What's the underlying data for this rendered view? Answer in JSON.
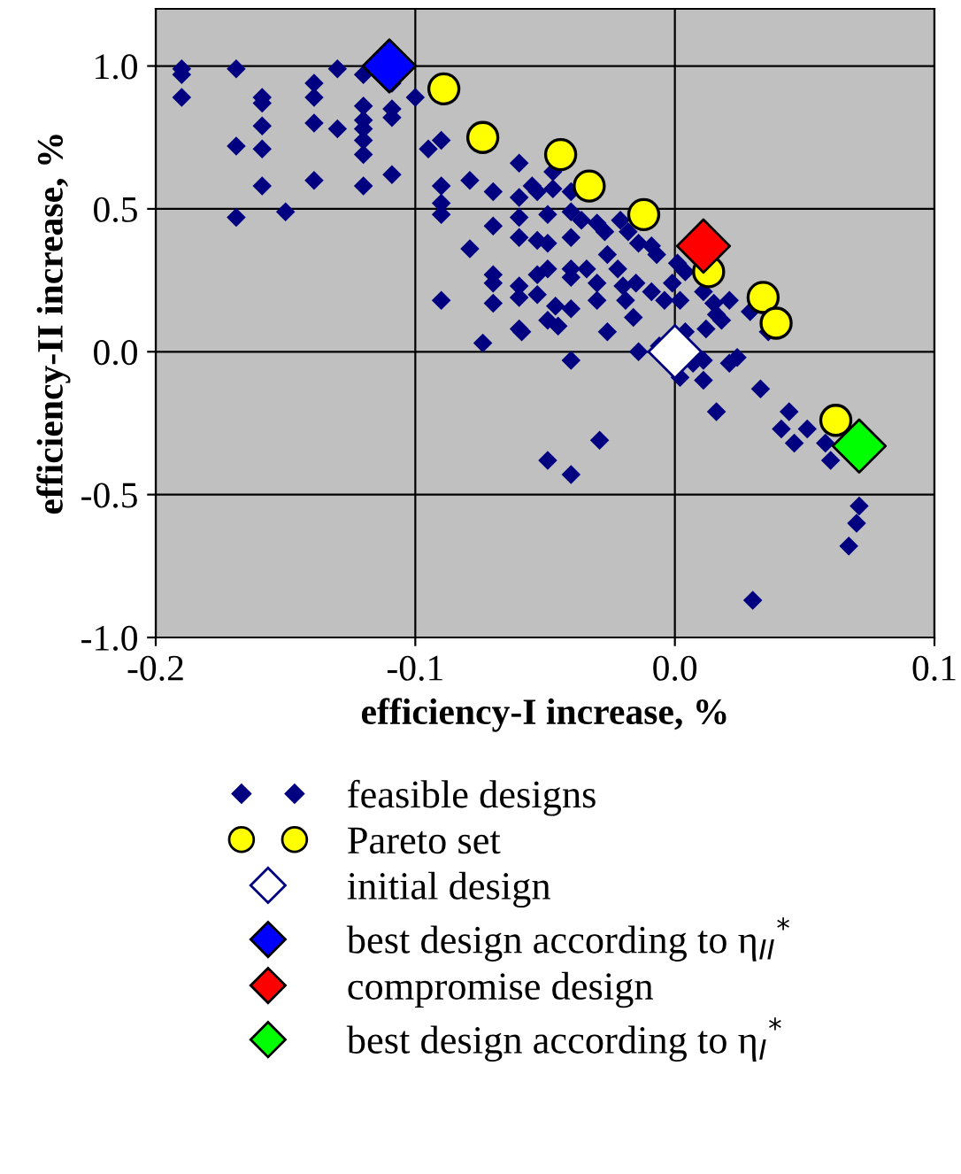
{
  "chart_data": {
    "type": "scatter",
    "xlabel": "efficiency-I increase, %",
    "ylabel": "efficiency-II increase, %",
    "xlim": [
      -0.2,
      0.1
    ],
    "xticks": [
      -0.2,
      -0.1,
      {
        "value": 0,
        "label": "0.0"
      },
      0.1
    ],
    "ylim": [
      -1.0,
      1.2
    ],
    "yticks": [
      {
        "value": -1.0,
        "label": "-1.0"
      },
      -0.5,
      {
        "value": 0,
        "label": "0.0"
      },
      0.5,
      {
        "value": 1.0,
        "label": "1.0"
      }
    ],
    "grid": true,
    "legend": "bottom",
    "series": [
      {
        "name": "feasible designs",
        "color": "#000080",
        "marker": "diamond",
        "x": [
          -0.19,
          -0.19,
          -0.19,
          -0.169,
          -0.169,
          -0.169,
          -0.159,
          -0.159,
          -0.159,
          -0.159,
          -0.159,
          -0.15,
          -0.139,
          -0.139,
          -0.139,
          -0.139,
          -0.13,
          -0.13,
          -0.12,
          -0.12,
          -0.12,
          -0.12,
          -0.12,
          -0.12,
          -0.12,
          -0.109,
          -0.109,
          -0.109,
          -0.109,
          -0.1,
          -0.095,
          -0.09,
          -0.09,
          -0.09,
          -0.09,
          -0.09,
          -0.079,
          -0.079,
          -0.074,
          -0.07,
          -0.07,
          -0.07,
          -0.07,
          -0.07,
          -0.06,
          -0.06,
          -0.06,
          -0.06,
          -0.06,
          -0.06,
          -0.06,
          -0.059,
          -0.055,
          -0.053,
          -0.053,
          -0.053,
          -0.053,
          -0.049,
          -0.049,
          -0.049,
          -0.049,
          -0.049,
          -0.047,
          -0.047,
          -0.046,
          -0.045,
          -0.04,
          -0.04,
          -0.04,
          -0.04,
          -0.04,
          -0.04,
          -0.04,
          -0.04,
          -0.036,
          -0.034,
          -0.03,
          -0.03,
          -0.03,
          -0.029,
          -0.027,
          -0.026,
          -0.026,
          -0.022,
          -0.021,
          -0.02,
          -0.019,
          -0.018,
          -0.016,
          -0.015,
          -0.014,
          -0.014,
          -0.009,
          -0.009,
          -0.007,
          -0.006,
          -0.004,
          -0.001,
          0.001,
          0.002,
          0.004,
          0.004,
          0.002,
          0.007,
          0.011,
          0.011,
          0.011,
          0.012,
          0.015,
          0.016,
          0.018,
          0.021,
          0.016,
          0.021,
          0.024,
          0.029,
          0.036,
          0.033,
          0.044,
          0.041,
          0.046,
          0.051,
          0.058,
          0.06,
          0.071,
          0.07,
          0.067,
          0.03
        ],
        "values": [
          0.99,
          0.97,
          0.89,
          0.99,
          0.72,
          0.47,
          0.89,
          0.87,
          0.79,
          0.71,
          0.58,
          0.49,
          0.94,
          0.89,
          0.8,
          0.6,
          0.99,
          0.78,
          0.97,
          0.86,
          0.81,
          0.78,
          0.74,
          0.69,
          0.58,
          0.94,
          0.85,
          0.82,
          0.62,
          0.89,
          0.71,
          0.74,
          0.58,
          0.52,
          0.48,
          0.18,
          0.6,
          0.36,
          0.03,
          0.56,
          0.44,
          0.27,
          0.24,
          0.17,
          0.66,
          0.54,
          0.47,
          0.4,
          0.23,
          0.19,
          0.08,
          0.07,
          0.58,
          0.56,
          0.39,
          0.27,
          0.2,
          0.48,
          0.38,
          0.29,
          0.11,
          -0.38,
          0.63,
          0.57,
          0.16,
          0.09,
          0.56,
          0.49,
          0.4,
          0.29,
          0.26,
          0.15,
          -0.03,
          -0.43,
          0.46,
          0.29,
          0.45,
          0.24,
          0.18,
          -0.31,
          0.42,
          0.34,
          0.07,
          0.29,
          0.46,
          0.23,
          0.18,
          0.42,
          0.12,
          0.24,
          0.38,
          0.0,
          0.21,
          0.37,
          0.34,
          0.02,
          0.18,
          0.24,
          0.31,
          0.18,
          0.07,
          0.28,
          -0.09,
          -0.04,
          -0.03,
          -0.1,
          0.21,
          0.08,
          0.17,
          0.13,
          0.11,
          0.18,
          -0.21,
          -0.04,
          -0.02,
          0.14,
          0.07,
          -0.13,
          -0.21,
          -0.27,
          -0.32,
          -0.27,
          -0.32,
          -0.38,
          -0.54,
          -0.6,
          -0.68,
          -0.87
        ]
      },
      {
        "name": "Pareto set",
        "color": "#ffff00",
        "marker": "circle",
        "x": [
          -0.089,
          -0.074,
          -0.044,
          -0.033,
          -0.012,
          0.013,
          0.034,
          0.039,
          0.062
        ],
        "values": [
          0.92,
          0.75,
          0.69,
          0.58,
          0.48,
          0.28,
          0.19,
          0.1,
          -0.24
        ]
      },
      {
        "name": "initial design",
        "color": "#ffffff",
        "marker": "diamond",
        "x": [
          0.0
        ],
        "values": [
          0.0
        ]
      },
      {
        "name": "best design according to η$_{II}$$^{*}$",
        "color": "#0000ff",
        "marker": "diamond",
        "x": [
          -0.11
        ],
        "values": [
          1.0
        ]
      },
      {
        "name": "compromise design",
        "color": "#ff0000",
        "marker": "diamond",
        "x": [
          0.011
        ],
        "values": [
          0.37
        ]
      },
      {
        "name": "best design according to η$_{I}$$^{*}$",
        "color": "#00ff00",
        "marker": "diamond",
        "x": [
          0.071
        ],
        "values": [
          -0.33
        ]
      }
    ]
  }
}
